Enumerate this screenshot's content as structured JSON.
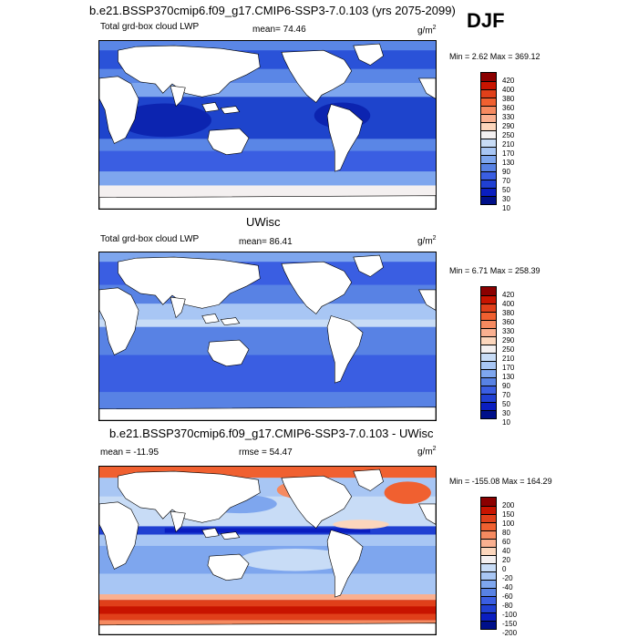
{
  "main_title": "b.e21.BSSP370cmip6.f09_g17.CMIP6-SSP3-7.0.103 (yrs 2075-2099)",
  "season": "DJF",
  "panels": [
    {
      "title": "",
      "left_label": "Total grd-box cloud LWP",
      "stat_label": "mean=  74.46",
      "unit": "g/m",
      "unit_sup": "2",
      "minmax": "Min =   2.62 Max = 369.12",
      "colorbar": {
        "labels": [
          "420",
          "400",
          "380",
          "360",
          "330",
          "290",
          "250",
          "210",
          "170",
          "130",
          "90",
          "70",
          "50",
          "30",
          "10"
        ],
        "colors": [
          "#8b0000",
          "#c81400",
          "#e0401a",
          "#f06030",
          "#f68a60",
          "#fab090",
          "#fcd6bc",
          "#f4f0f0",
          "#c8dcf6",
          "#a8c6f4",
          "#7ea6ee",
          "#5882e4",
          "#3a5ee2",
          "#2040d2",
          "#0a1ec0",
          "#00108a"
        ]
      }
    },
    {
      "title": "UWisc",
      "left_label": "Total grd-box cloud LWP",
      "stat_label": "mean=  86.41",
      "unit": "g/m",
      "unit_sup": "2",
      "minmax": "Min =   6.71 Max = 258.39",
      "colorbar": {
        "labels": [
          "420",
          "400",
          "380",
          "360",
          "330",
          "290",
          "250",
          "210",
          "170",
          "130",
          "90",
          "70",
          "50",
          "30",
          "10"
        ],
        "colors": [
          "#8b0000",
          "#c81400",
          "#e0401a",
          "#f06030",
          "#f68a60",
          "#fab090",
          "#fcd6bc",
          "#f4f0f0",
          "#c8dcf6",
          "#a8c6f4",
          "#7ea6ee",
          "#5882e4",
          "#3a5ee2",
          "#2040d2",
          "#0a1ec0",
          "#00108a"
        ]
      }
    },
    {
      "title": "b.e21.BSSP370cmip6.f09_g17.CMIP6-SSP3-7.0.103 - UWisc",
      "left_label": "mean = -11.95",
      "stat_label": "rmse =  54.47",
      "unit": "g/m",
      "unit_sup": "2",
      "minmax": "Min = -155.08 Max = 164.29",
      "colorbar": {
        "labels": [
          "200",
          "150",
          "100",
          "80",
          "60",
          "40",
          "20",
          "0",
          "-20",
          "-40",
          "-60",
          "-80",
          "-100",
          "-150",
          "-200"
        ],
        "colors": [
          "#8b0000",
          "#c81400",
          "#e0401a",
          "#f06030",
          "#f68a60",
          "#fab090",
          "#fcd6bc",
          "#f4f0f0",
          "#c8dcf6",
          "#a8c6f4",
          "#7ea6ee",
          "#5882e4",
          "#3a5ee2",
          "#2040d2",
          "#0a1ec0",
          "#00108a"
        ]
      }
    }
  ]
}
